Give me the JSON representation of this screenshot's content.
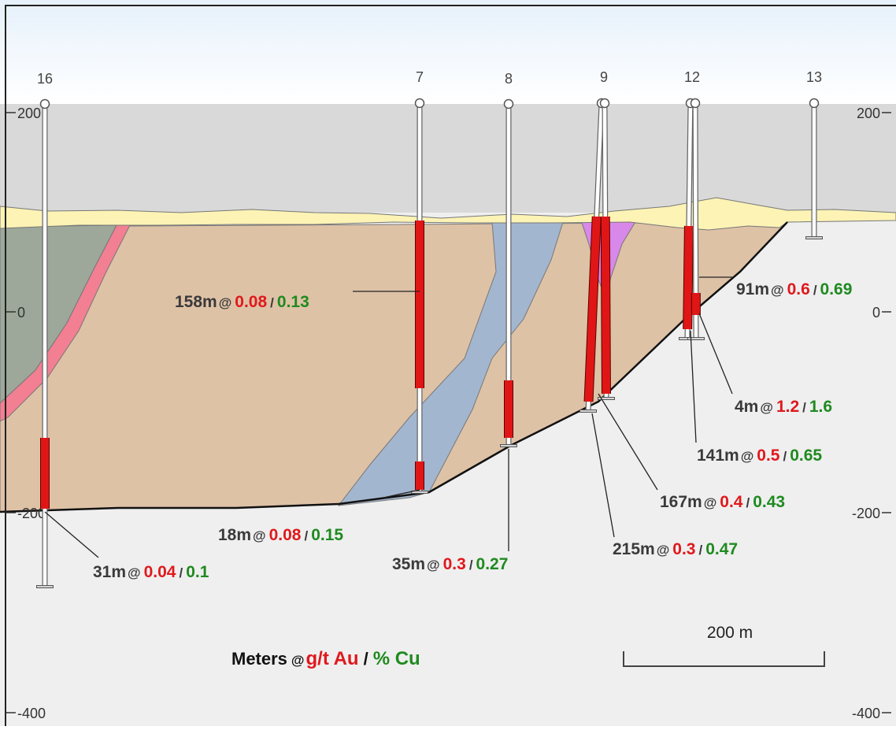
{
  "colors": {
    "au": "#e0191d",
    "cu": "#1f8a1f",
    "label": "#3a3a3a",
    "sky_top": "#e6f1fb",
    "sky_bottom": "#ffffff",
    "air": "#d9d9d9",
    "basement": "#efefef",
    "cover": "#fcf3b5",
    "host": "#dec2a6",
    "green_unit": "#9ea89a",
    "pink_dyke": "#f27f92",
    "blue_unit": "#a3b6cf",
    "purple_unit": "#d888e8",
    "intercept": "#e01616"
  },
  "axis": {
    "left_ticks": [
      "200",
      "0",
      "-200",
      "-400"
    ],
    "right_ticks": [
      "200",
      "0",
      "-200",
      "-400"
    ]
  },
  "holes": [
    {
      "id": "16"
    },
    {
      "id": "7"
    },
    {
      "id": "8"
    },
    {
      "id": "9"
    },
    {
      "id": "12"
    },
    {
      "id": "13"
    }
  ],
  "intercepts": [
    {
      "meters": "158m",
      "au": "0.08",
      "cu": "0.13"
    },
    {
      "meters": "91m",
      "au": "0.6",
      "cu": "0.69"
    },
    {
      "meters": "4m",
      "au": "1.2",
      "cu": "1.6"
    },
    {
      "meters": "141m",
      "au": "0.5",
      "cu": "0.65"
    },
    {
      "meters": "167m",
      "au": "0.4",
      "cu": "0.43"
    },
    {
      "meters": "215m",
      "au": "0.3",
      "cu": "0.47"
    },
    {
      "meters": "18m",
      "au": "0.08",
      "cu": "0.15"
    },
    {
      "meters": "35m",
      "au": "0.3",
      "cu": "0.27"
    },
    {
      "meters": "31m",
      "au": "0.04",
      "cu": "0.1"
    }
  ],
  "separators": {
    "at": "@",
    "slash": "/"
  },
  "scale_bar": {
    "label": "200 m"
  },
  "legend": {
    "meters": "Meters",
    "at": "@",
    "au": "g/t Au",
    "slash": "/",
    "cu": "% Cu"
  }
}
